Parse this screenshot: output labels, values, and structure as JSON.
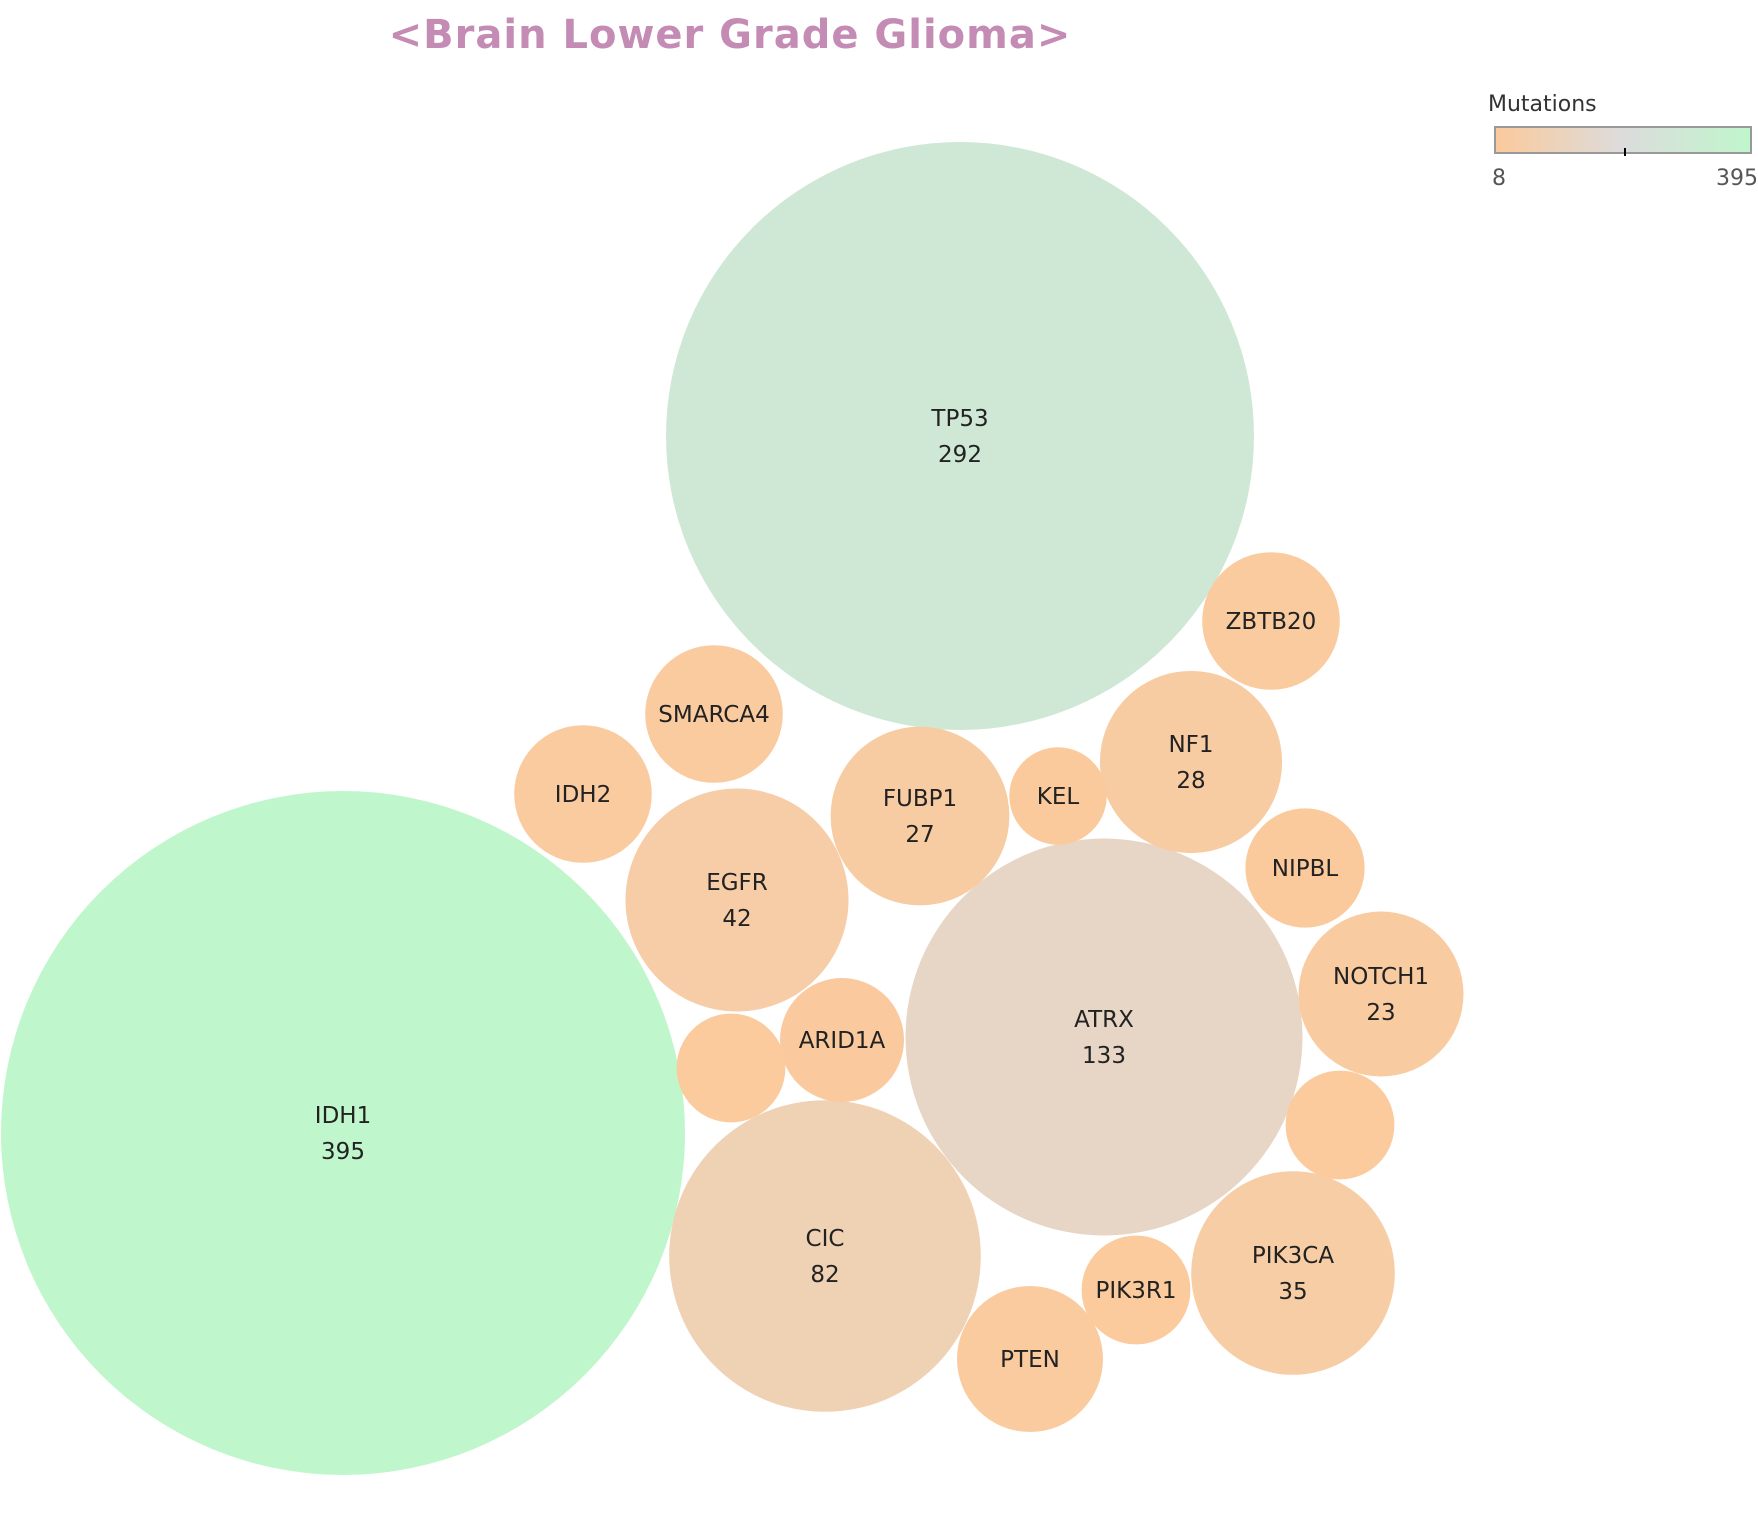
{
  "chart_data": {
    "type": "bubble",
    "title": "<Brain Lower Grade Glioma>",
    "color_scale": {
      "title": "Mutations",
      "min": 8,
      "max": 395,
      "min_label": "8",
      "max_label": "395",
      "colors": [
        "#fbca9c",
        "#dcdcdc",
        "#c0f6cc"
      ]
    },
    "bubbles": [
      {
        "name": "IDH1",
        "value": 395,
        "value_label": "395"
      },
      {
        "name": "TP53",
        "value": 292,
        "value_label": "292"
      },
      {
        "name": "ATRX",
        "value": 133,
        "value_label": "133"
      },
      {
        "name": "CIC",
        "value": 82,
        "value_label": "82"
      },
      {
        "name": "EGFR",
        "value": 42,
        "value_label": "42"
      },
      {
        "name": "PIK3CA",
        "value": 35,
        "value_label": "35"
      },
      {
        "name": "NF1",
        "value": 28,
        "value_label": "28"
      },
      {
        "name": "FUBP1",
        "value": 27,
        "value_label": "27"
      },
      {
        "name": "NOTCH1",
        "value": 23,
        "value_label": "23"
      },
      {
        "name": "PTEN",
        "value": 18
      },
      {
        "name": "SMARCA4",
        "value": 16
      },
      {
        "name": "ZBTB20",
        "value": 16
      },
      {
        "name": "IDH2",
        "value": 16
      },
      {
        "name": "ARID1A",
        "value": 13
      },
      {
        "name": "NIPBL",
        "value": 12
      },
      {
        "name": "PIK3R1",
        "value": 10
      },
      {
        "name": "",
        "value": 10
      },
      {
        "name": "",
        "value": 10
      },
      {
        "name": "KEL",
        "value": 8
      }
    ]
  }
}
